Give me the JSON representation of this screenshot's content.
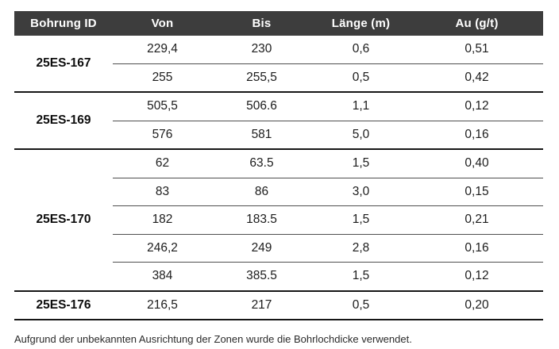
{
  "table": {
    "columns": [
      "Bohrung ID",
      "Von",
      "Bis",
      "Länge (m)",
      "Au (g/t)"
    ],
    "groups": [
      {
        "id": "25ES-167",
        "rows": [
          [
            "229,4",
            "230",
            "0,6",
            "0,51"
          ],
          [
            "255",
            "255,5",
            "0,5",
            "0,42"
          ]
        ]
      },
      {
        "id": "25ES-169",
        "rows": [
          [
            "505,5",
            "506.6",
            "1,1",
            "0,12"
          ],
          [
            "576",
            "581",
            "5,0",
            "0,16"
          ]
        ]
      },
      {
        "id": "25ES-170",
        "rows": [
          [
            "62",
            "63.5",
            "1,5",
            "0,40"
          ],
          [
            "83",
            "86",
            "3,0",
            "0,15"
          ],
          [
            "182",
            "183.5",
            "1,5",
            "0,21"
          ],
          [
            "246,2",
            "249",
            "2,8",
            "0,16"
          ],
          [
            "384",
            "385.5",
            "1,5",
            "0,12"
          ]
        ]
      },
      {
        "id": "25ES-176",
        "rows": [
          [
            "216,5",
            "217",
            "0,5",
            "0,20"
          ]
        ]
      }
    ]
  },
  "footnote": "Aufgrund der unbekannten Ausrichtung der Zonen wurde die Bohrlochdicke verwendet.",
  "colors": {
    "header_bg": "#3d3d3d",
    "header_text": "#ffffff",
    "body_text": "#1c1c1c",
    "divider_thin": "#4f4f4f",
    "divider_thick": "#161616"
  }
}
